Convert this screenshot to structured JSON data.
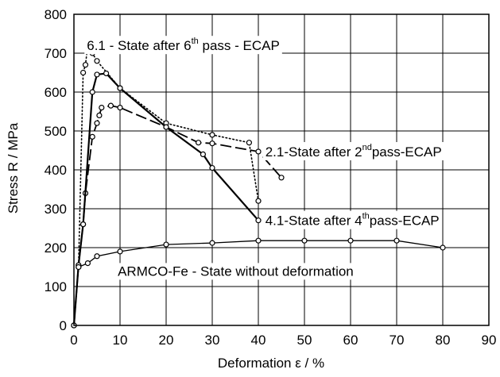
{
  "chart_data": {
    "type": "line",
    "title": "",
    "xlabel": "Deformation ε / %",
    "ylabel": "Stress R / MPa",
    "xlim": [
      0,
      90
    ],
    "ylim": [
      0,
      800
    ],
    "xticks": [
      "0",
      "10",
      "20",
      "30",
      "40",
      "50",
      "60",
      "70",
      "80",
      "90"
    ],
    "yticks": [
      "0",
      "100",
      "200",
      "300",
      "400",
      "500",
      "600",
      "700",
      "800"
    ],
    "grid": true,
    "legend": "none",
    "series": [
      {
        "style": "dotted",
        "points": [
          [
            0,
            0
          ],
          [
            1,
            150
          ],
          [
            2,
            650
          ],
          [
            2.5,
            670
          ],
          [
            3,
            720
          ],
          [
            4,
            700
          ],
          [
            5,
            680
          ],
          [
            10,
            610
          ],
          [
            20,
            520
          ],
          [
            30,
            490
          ],
          [
            38,
            470
          ],
          [
            40,
            320
          ]
        ]
      },
      {
        "style": "dashed",
        "points": [
          [
            0,
            0
          ],
          [
            1,
            155
          ],
          [
            2,
            260
          ],
          [
            2.5,
            340
          ],
          [
            4,
            485
          ],
          [
            5,
            520
          ],
          [
            5.5,
            540
          ],
          [
            6,
            560
          ],
          [
            8,
            565
          ],
          [
            10,
            560
          ],
          [
            20,
            510
          ],
          [
            27,
            470
          ],
          [
            30,
            468
          ],
          [
            40,
            447
          ],
          [
            45,
            380
          ]
        ]
      },
      {
        "style": "solid-thick",
        "points": [
          [
            0,
            0
          ],
          [
            1,
            155
          ],
          [
            2,
            260
          ],
          [
            4,
            600
          ],
          [
            5,
            645
          ],
          [
            7,
            648
          ],
          [
            10,
            610
          ],
          [
            20,
            510
          ],
          [
            28,
            440
          ],
          [
            30,
            405
          ],
          [
            40,
            270
          ]
        ]
      },
      {
        "style": "solid-thin",
        "points": [
          [
            0,
            0
          ],
          [
            1,
            150
          ],
          [
            3,
            160
          ],
          [
            5,
            178
          ],
          [
            10,
            190
          ],
          [
            20,
            208
          ],
          [
            30,
            212
          ],
          [
            40,
            218
          ],
          [
            50,
            218
          ],
          [
            60,
            218
          ],
          [
            70,
            218
          ],
          [
            80,
            200
          ]
        ]
      }
    ],
    "annotations": [
      {
        "text": "6.1  - State after 6",
        "sup": "th",
        "text_after": " pass - ECAP",
        "x": 2.8,
        "y": 720
      },
      {
        "text": "2.1-State after 2",
        "sup": "nd",
        "text_after": "pass-ECAP",
        "x": 41.5,
        "y": 447
      },
      {
        "text": "4.1-State after 4",
        "sup": "th",
        "text_after": "pass-ECAP",
        "x": 41.5,
        "y": 270
      },
      {
        "text": "ARMCO-Fe - State without deformation",
        "x": 9.5,
        "y": 140
      }
    ]
  }
}
